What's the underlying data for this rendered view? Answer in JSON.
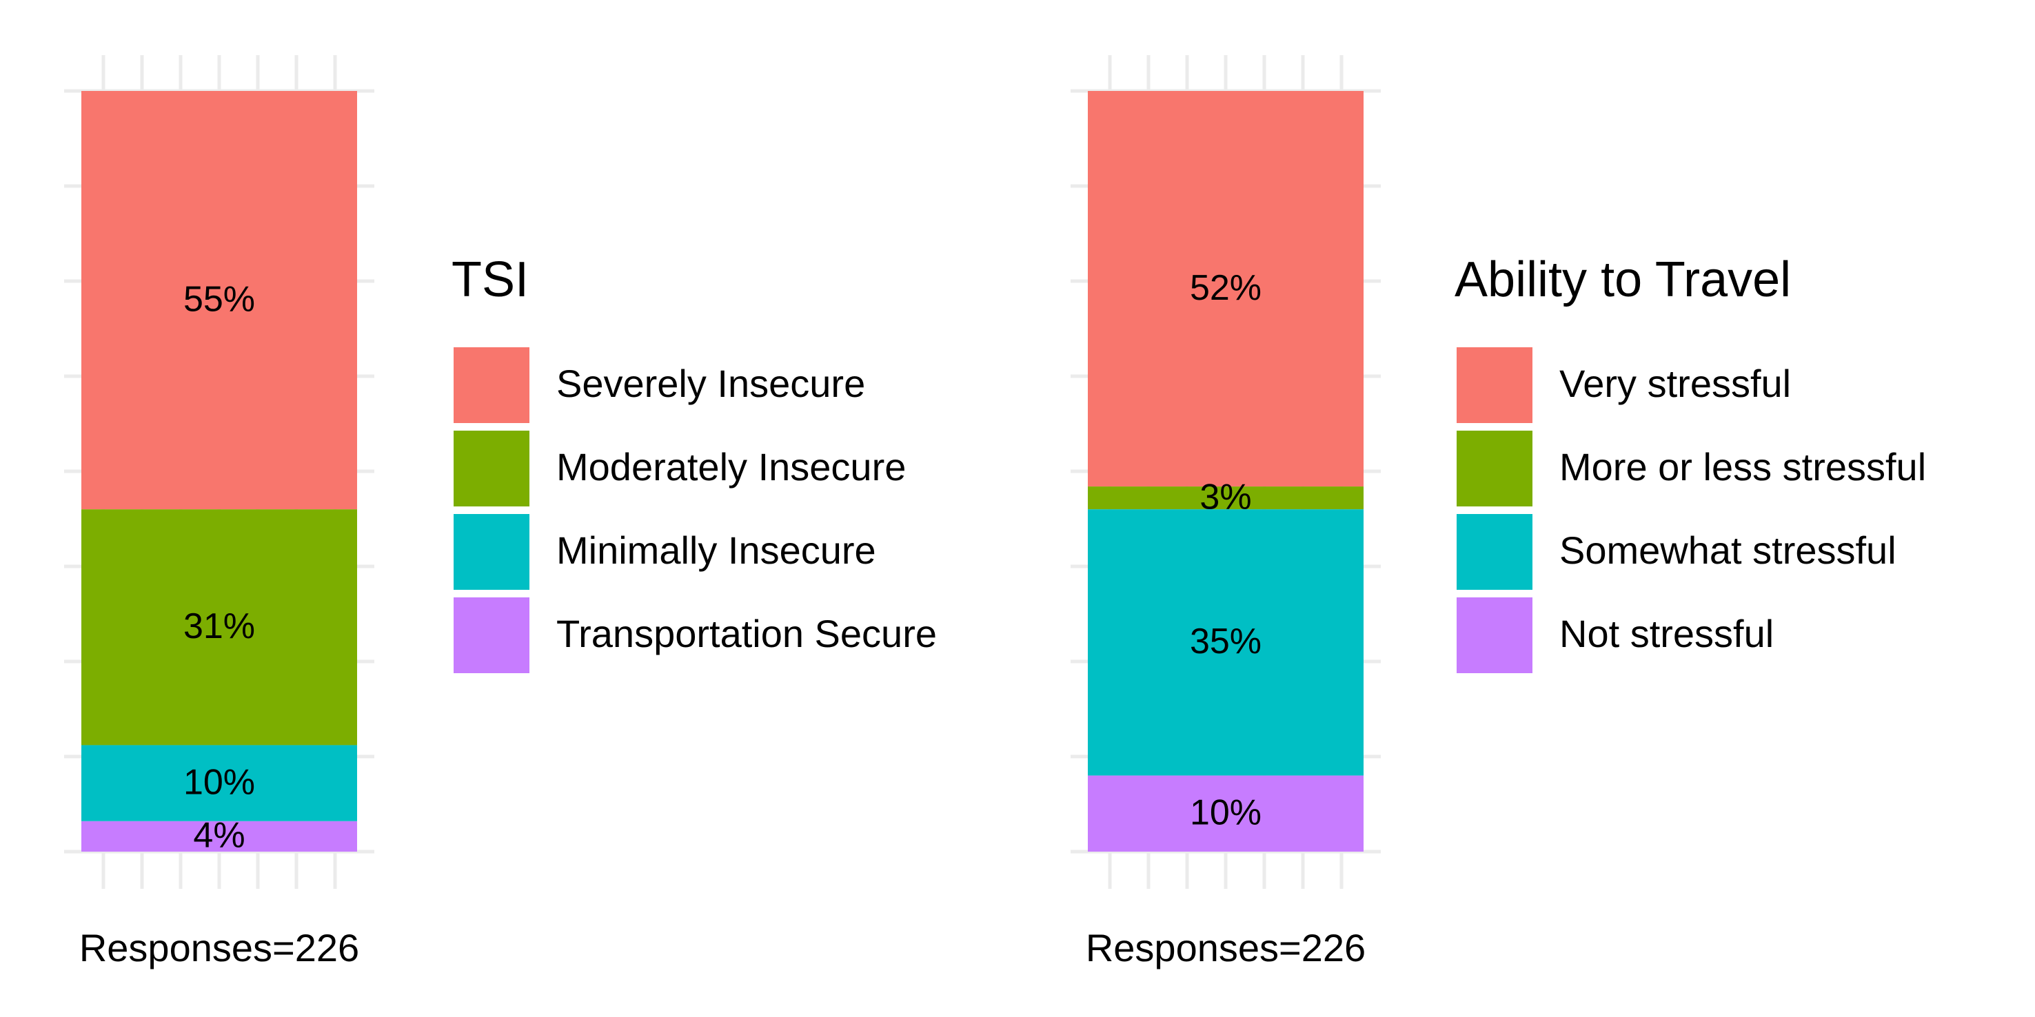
{
  "chart_data": [
    {
      "type": "bar",
      "stacked": true,
      "xlabel": "Responses=226",
      "legend_title": "TSI",
      "legend_position": "right",
      "ylim": [
        0,
        100
      ],
      "grid": true,
      "series": [
        {
          "name": "Severely Insecure",
          "value": 55,
          "label": "55%",
          "color": "#F8766D"
        },
        {
          "name": "Moderately Insecure",
          "value": 31,
          "label": "31%",
          "color": "#7CAE00"
        },
        {
          "name": "Minimally Insecure",
          "value": 10,
          "label": "10%",
          "color": "#00BFC4"
        },
        {
          "name": "Transportation Secure",
          "value": 4,
          "label": "4%",
          "color": "#C77CFF"
        }
      ]
    },
    {
      "type": "bar",
      "stacked": true,
      "xlabel": "Responses=226",
      "legend_title": "Ability to Travel",
      "legend_position": "right",
      "ylim": [
        0,
        100
      ],
      "grid": true,
      "series": [
        {
          "name": "Very stressful",
          "value": 52,
          "label": "52%",
          "color": "#F8766D"
        },
        {
          "name": "More or less stressful",
          "value": 3,
          "label": "3%",
          "color": "#7CAE00"
        },
        {
          "name": "Somewhat stressful",
          "value": 35,
          "label": "35%",
          "color": "#00BFC4"
        },
        {
          "name": "Not stressful",
          "value": 10,
          "label": "10%",
          "color": "#C77CFF"
        }
      ]
    }
  ]
}
